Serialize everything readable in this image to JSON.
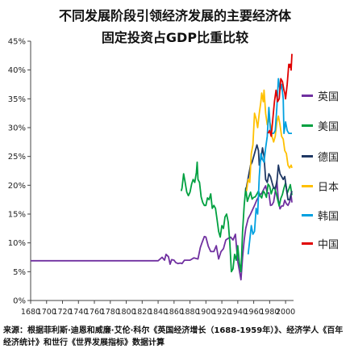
{
  "title_line1": "不同发展阶段引领经济发展的主要经济体",
  "title_line2": "固定投资占GDP比重比较",
  "source_note": "来源：根据菲利斯·迪恩和威廉·艾伦·科尔《英国经济增长（1688-1959年）》、经济学人《百年经济统计》和世行《世界发展指标》数据计算",
  "chart_data": {
    "type": "line",
    "xlim": [
      1680,
      2010
    ],
    "ylim": [
      0,
      45
    ],
    "x_ticks": [
      1680,
      1700,
      1720,
      1740,
      1760,
      1780,
      1800,
      1820,
      1840,
      1860,
      1880,
      1900,
      1920,
      1940,
      1960,
      1980,
      2000
    ],
    "y_ticks": [
      0,
      5,
      10,
      15,
      20,
      25,
      30,
      35,
      40,
      45
    ],
    "y_tick_labels": [
      "0%",
      "5%",
      "10%",
      "15%",
      "20%",
      "25%",
      "30%",
      "35%",
      "40%",
      "45%"
    ],
    "grid": false,
    "legend_position": "right",
    "series": [
      {
        "name": "英国",
        "color": "#7030A0",
        "points": [
          [
            1680,
            6.9
          ],
          [
            1700,
            6.9
          ],
          [
            1720,
            6.9
          ],
          [
            1740,
            6.9
          ],
          [
            1760,
            6.9
          ],
          [
            1780,
            6.9
          ],
          [
            1800,
            6.9
          ],
          [
            1820,
            6.9
          ],
          [
            1840,
            6.9
          ],
          [
            1845,
            7.5
          ],
          [
            1848,
            7.0
          ],
          [
            1850,
            8.0
          ],
          [
            1853,
            7.6
          ],
          [
            1855,
            6.3
          ],
          [
            1857,
            7.1
          ],
          [
            1860,
            7.0
          ],
          [
            1862,
            6.6
          ],
          [
            1865,
            6.4
          ],
          [
            1868,
            6.5
          ],
          [
            1870,
            6.4
          ],
          [
            1873,
            7.0
          ],
          [
            1876,
            7.0
          ],
          [
            1880,
            7.0
          ],
          [
            1885,
            7.4
          ],
          [
            1890,
            7.2
          ],
          [
            1893,
            9.2
          ],
          [
            1895,
            10.0
          ],
          [
            1898,
            11.1
          ],
          [
            1900,
            11.0
          ],
          [
            1903,
            9.4
          ],
          [
            1906,
            8.5
          ],
          [
            1910,
            8.5
          ],
          [
            1913,
            9.5
          ],
          [
            1916,
            7.2
          ],
          [
            1919,
            8.5
          ],
          [
            1922,
            9.0
          ],
          [
            1925,
            10.5
          ],
          [
            1928,
            10.8
          ],
          [
            1931,
            11.0
          ],
          [
            1934,
            10.5
          ],
          [
            1937,
            11.5
          ],
          [
            1940,
            6.8
          ],
          [
            1942,
            5.2
          ],
          [
            1944,
            3.6
          ],
          [
            1946,
            7.5
          ],
          [
            1948,
            10.5
          ],
          [
            1950,
            12.5
          ],
          [
            1953,
            14.2
          ],
          [
            1956,
            15.0
          ],
          [
            1959,
            15.9
          ],
          [
            1961,
            16.5
          ],
          [
            1964,
            17.5
          ],
          [
            1967,
            18.2
          ],
          [
            1970,
            18.6
          ],
          [
            1973,
            19.4
          ],
          [
            1975,
            19.9
          ],
          [
            1977,
            18.6
          ],
          [
            1979,
            18.7
          ],
          [
            1981,
            16.5
          ],
          [
            1983,
            16.6
          ],
          [
            1985,
            17.1
          ],
          [
            1987,
            18.9
          ],
          [
            1989,
            20.8
          ],
          [
            1991,
            17.3
          ],
          [
            1993,
            15.9
          ],
          [
            1995,
            16.4
          ],
          [
            1997,
            16.4
          ],
          [
            1999,
            17.4
          ],
          [
            2001,
            16.8
          ],
          [
            2003,
            16.5
          ],
          [
            2005,
            17.1
          ],
          [
            2007,
            18.2
          ],
          [
            2008,
            17.0
          ]
        ]
      },
      {
        "name": "美国",
        "color": "#00A040",
        "points": [
          [
            1869,
            19.0
          ],
          [
            1870,
            19.5
          ],
          [
            1872,
            22.0
          ],
          [
            1874,
            20.5
          ],
          [
            1876,
            18.8
          ],
          [
            1878,
            18.2
          ],
          [
            1880,
            18.8
          ],
          [
            1882,
            20.2
          ],
          [
            1884,
            21.0
          ],
          [
            1886,
            20.5
          ],
          [
            1888,
            22.2
          ],
          [
            1889,
            24.0
          ],
          [
            1890,
            21.0
          ],
          [
            1892,
            20.5
          ],
          [
            1894,
            18.0
          ],
          [
            1896,
            17.0
          ],
          [
            1898,
            16.5
          ],
          [
            1900,
            16.5
          ],
          [
            1902,
            17.8
          ],
          [
            1904,
            17.5
          ],
          [
            1906,
            18.5
          ],
          [
            1908,
            16.0
          ],
          [
            1910,
            16.5
          ],
          [
            1912,
            16.0
          ],
          [
            1914,
            14.0
          ],
          [
            1916,
            12.0
          ],
          [
            1918,
            11.0
          ],
          [
            1920,
            13.0
          ],
          [
            1922,
            12.5
          ],
          [
            1924,
            14.5
          ],
          [
            1926,
            15.0
          ],
          [
            1928,
            13.6
          ],
          [
            1930,
            10.0
          ],
          [
            1932,
            5.0
          ],
          [
            1934,
            5.5
          ],
          [
            1936,
            8.0
          ],
          [
            1938,
            7.0
          ],
          [
            1940,
            9.5
          ],
          [
            1942,
            6.5
          ],
          [
            1944,
            5.0
          ],
          [
            1946,
            12.0
          ],
          [
            1948,
            16.5
          ],
          [
            1950,
            19.5
          ],
          [
            1952,
            17.2
          ],
          [
            1954,
            18.0
          ],
          [
            1956,
            18.8
          ],
          [
            1958,
            17.6
          ],
          [
            1960,
            17.9
          ],
          [
            1962,
            18.0
          ],
          [
            1964,
            18.5
          ],
          [
            1966,
            19.0
          ],
          [
            1968,
            18.2
          ],
          [
            1970,
            17.8
          ],
          [
            1972,
            19.0
          ],
          [
            1974,
            18.6
          ],
          [
            1976,
            17.9
          ],
          [
            1978,
            20.2
          ],
          [
            1980,
            19.8
          ],
          [
            1982,
            18.5
          ],
          [
            1984,
            19.4
          ],
          [
            1986,
            19.6
          ],
          [
            1988,
            18.7
          ],
          [
            1990,
            17.6
          ],
          [
            1992,
            16.4
          ],
          [
            1994,
            17.7
          ],
          [
            1996,
            18.4
          ],
          [
            1998,
            19.5
          ],
          [
            2000,
            20.4
          ],
          [
            2002,
            18.6
          ],
          [
            2004,
            19.3
          ],
          [
            2006,
            20.1
          ],
          [
            2008,
            18.3
          ]
        ]
      },
      {
        "name": "德国",
        "color": "#1F3864",
        "points": [
          [
            1950,
            19.0
          ],
          [
            1952,
            20.5
          ],
          [
            1954,
            22.0
          ],
          [
            1956,
            23.5
          ],
          [
            1958,
            24.0
          ],
          [
            1960,
            25.0
          ],
          [
            1962,
            26.0
          ],
          [
            1964,
            27.0
          ],
          [
            1966,
            26.0
          ],
          [
            1967,
            23.5
          ],
          [
            1969,
            24.5
          ],
          [
            1971,
            26.5
          ],
          [
            1973,
            25.0
          ],
          [
            1975,
            21.0
          ],
          [
            1977,
            20.5
          ],
          [
            1979,
            22.0
          ],
          [
            1981,
            21.5
          ],
          [
            1983,
            20.5
          ],
          [
            1985,
            19.5
          ],
          [
            1987,
            19.5
          ],
          [
            1989,
            20.5
          ],
          [
            1991,
            23.5
          ],
          [
            1993,
            22.0
          ],
          [
            1995,
            21.5
          ],
          [
            1997,
            21.0
          ],
          [
            1999,
            21.5
          ],
          [
            2001,
            19.5
          ],
          [
            2003,
            17.5
          ],
          [
            2005,
            17.5
          ],
          [
            2007,
            18.5
          ],
          [
            2008,
            19.0
          ]
        ]
      },
      {
        "name": "日本",
        "color": "#FFC000",
        "points": [
          [
            1951,
            19.0
          ],
          [
            1953,
            21.0
          ],
          [
            1955,
            20.5
          ],
          [
            1957,
            25.5
          ],
          [
            1959,
            27.0
          ],
          [
            1961,
            32.5
          ],
          [
            1963,
            31.5
          ],
          [
            1965,
            30.0
          ],
          [
            1967,
            32.5
          ],
          [
            1969,
            34.5
          ],
          [
            1970,
            36.0
          ],
          [
            1972,
            34.5
          ],
          [
            1973,
            36.5
          ],
          [
            1975,
            32.5
          ],
          [
            1977,
            30.5
          ],
          [
            1979,
            31.5
          ],
          [
            1981,
            30.5
          ],
          [
            1983,
            28.5
          ],
          [
            1985,
            27.5
          ],
          [
            1987,
            28.5
          ],
          [
            1989,
            31.0
          ],
          [
            1991,
            32.0
          ],
          [
            1993,
            30.5
          ],
          [
            1995,
            28.5
          ],
          [
            1997,
            28.0
          ],
          [
            1999,
            26.0
          ],
          [
            2001,
            25.5
          ],
          [
            2003,
            23.5
          ],
          [
            2005,
            23.0
          ],
          [
            2007,
            23.5
          ],
          [
            2008,
            23.0
          ]
        ]
      },
      {
        "name": "韩国",
        "color": "#00A0E0",
        "points": [
          [
            1953,
            8.0
          ],
          [
            1955,
            10.5
          ],
          [
            1957,
            13.0
          ],
          [
            1959,
            11.5
          ],
          [
            1961,
            12.0
          ],
          [
            1963,
            16.0
          ],
          [
            1965,
            15.0
          ],
          [
            1967,
            21.5
          ],
          [
            1969,
            25.5
          ],
          [
            1971,
            24.5
          ],
          [
            1973,
            24.0
          ],
          [
            1975,
            26.5
          ],
          [
            1977,
            28.5
          ],
          [
            1979,
            33.5
          ],
          [
            1981,
            29.5
          ],
          [
            1983,
            29.0
          ],
          [
            1985,
            29.0
          ],
          [
            1987,
            29.5
          ],
          [
            1989,
            33.5
          ],
          [
            1991,
            38.5
          ],
          [
            1993,
            36.5
          ],
          [
            1995,
            37.5
          ],
          [
            1997,
            35.0
          ],
          [
            1998,
            29.0
          ],
          [
            2000,
            31.0
          ],
          [
            2002,
            29.5
          ],
          [
            2004,
            29.0
          ],
          [
            2006,
            29.0
          ],
          [
            2008,
            29.0
          ]
        ]
      },
      {
        "name": "中国",
        "color": "#E00000",
        "points": [
          [
            1978,
            29.0
          ],
          [
            1980,
            29.5
          ],
          [
            1982,
            28.5
          ],
          [
            1984,
            31.5
          ],
          [
            1986,
            34.5
          ],
          [
            1988,
            36.5
          ],
          [
            1990,
            34.5
          ],
          [
            1992,
            35.0
          ],
          [
            1994,
            38.5
          ],
          [
            1996,
            38.0
          ],
          [
            1998,
            36.5
          ],
          [
            1999,
            36.0
          ],
          [
            2000,
            35.0
          ],
          [
            2002,
            37.5
          ],
          [
            2004,
            41.0
          ],
          [
            2005,
            40.5
          ],
          [
            2006,
            41.0
          ],
          [
            2007,
            40.0
          ],
          [
            2008,
            42.8
          ]
        ]
      }
    ]
  }
}
